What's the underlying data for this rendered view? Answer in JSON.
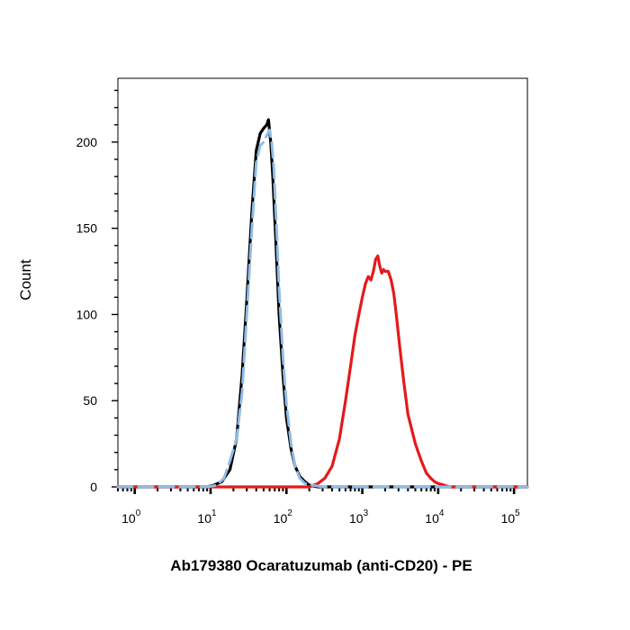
{
  "chart_data": {
    "type": "line",
    "title": "",
    "xlabel": "Ab179380 Ocaratuzumab (anti-CD20) - PE",
    "ylabel": "Count",
    "xscale": "log",
    "xlim": [
      0.6,
      150000
    ],
    "ylim": [
      0,
      237
    ],
    "grid": false,
    "legend": "none",
    "x_ticks": [
      {
        "value": 1,
        "base": "10",
        "exp": "0"
      },
      {
        "value": 10,
        "base": "10",
        "exp": "1"
      },
      {
        "value": 100,
        "base": "10",
        "exp": "2"
      },
      {
        "value": 1000,
        "base": "10",
        "exp": "3"
      },
      {
        "value": 10000,
        "base": "10",
        "exp": "4"
      },
      {
        "value": 100000,
        "base": "10",
        "exp": "5"
      }
    ],
    "y_ticks": [
      0,
      50,
      100,
      150,
      200
    ],
    "series": [
      {
        "color": "#000000",
        "dash": "solid",
        "x": [
          0.6,
          9,
          11,
          14,
          18,
          22,
          26,
          30,
          35,
          40,
          45,
          50,
          55,
          58,
          62,
          66,
          72,
          80,
          90,
          100,
          115,
          130,
          150,
          175,
          200,
          260,
          400,
          1000,
          10000,
          150000
        ],
        "y": [
          0,
          0,
          1,
          3,
          10,
          28,
          65,
          108,
          160,
          195,
          205,
          208,
          210,
          213,
          200,
          180,
          145,
          100,
          65,
          40,
          22,
          12,
          6,
          3,
          1,
          0,
          0,
          0,
          0,
          0
        ]
      },
      {
        "color": "#8fbce8",
        "dash": "dashed",
        "x": [
          0.6,
          9,
          12,
          15,
          18,
          22,
          26,
          30,
          35,
          40,
          45,
          50,
          55,
          60,
          64,
          68,
          74,
          80,
          90,
          100,
          115,
          130,
          150,
          175,
          220,
          300,
          1000,
          10000,
          150000
        ],
        "y": [
          0,
          0,
          1,
          5,
          15,
          28,
          55,
          100,
          150,
          188,
          198,
          200,
          204,
          207,
          200,
          185,
          150,
          115,
          75,
          48,
          25,
          12,
          5,
          2,
          1,
          0,
          0,
          0,
          0
        ]
      },
      {
        "color": "#e31a1c",
        "dash": "solid",
        "x": [
          0.6,
          100,
          200,
          260,
          320,
          400,
          500,
          600,
          700,
          800,
          900,
          1000,
          1100,
          1200,
          1300,
          1400,
          1500,
          1600,
          1700,
          1800,
          1900,
          2000,
          2200,
          2400,
          2600,
          2800,
          3100,
          3500,
          4000,
          5000,
          6000,
          7000,
          8000,
          9000,
          10000,
          12000,
          14000,
          20000,
          150000
        ],
        "y": [
          0,
          0,
          0,
          2,
          5,
          12,
          28,
          50,
          70,
          88,
          100,
          110,
          118,
          122,
          120,
          125,
          132,
          134,
          128,
          124,
          126,
          125,
          125,
          120,
          112,
          100,
          82,
          62,
          42,
          25,
          15,
          8,
          5,
          3,
          2,
          1,
          0,
          0,
          0
        ]
      }
    ]
  }
}
